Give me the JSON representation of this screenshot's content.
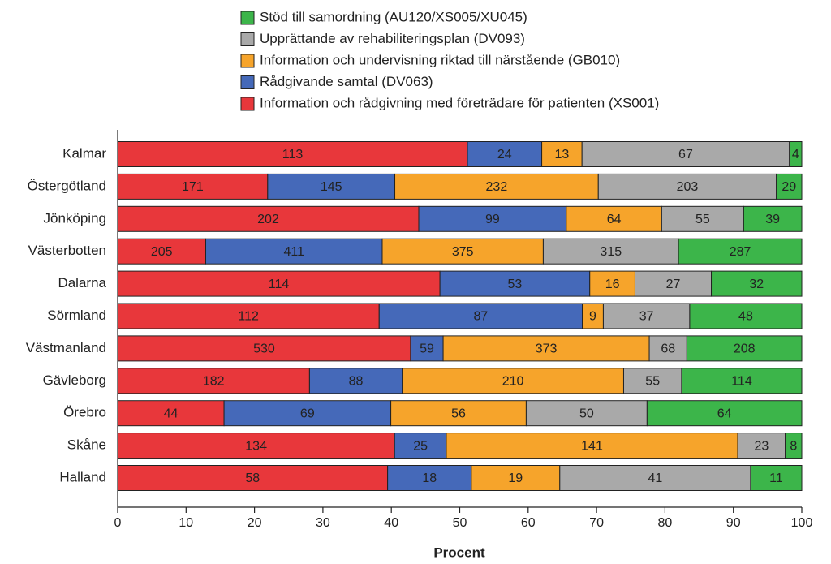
{
  "chart_data": {
    "type": "bar",
    "orientation": "horizontal",
    "stacked": "percent",
    "xlabel": "Procent",
    "categories": [
      "Kalmar",
      "Östergötland",
      "Jönköping",
      "Västerbotten",
      "Dalarna",
      "Sörmland",
      "Västmanland",
      "Gävleborg",
      "Örebro",
      "Skåne",
      "Halland"
    ],
    "series": [
      {
        "name": "Information och rådgivning med företrädare för patienten (XS001)",
        "color": "#e8373b",
        "values": [
          113,
          171,
          202,
          205,
          114,
          112,
          530,
          182,
          44,
          134,
          58
        ]
      },
      {
        "name": "Rådgivande samtal (DV063)",
        "color": "#4569b9",
        "values": [
          24,
          145,
          99,
          411,
          53,
          87,
          59,
          88,
          69,
          25,
          18
        ]
      },
      {
        "name": "Information och undervisning riktad till närstående (GB010)",
        "color": "#f6a42b",
        "values": [
          13,
          232,
          64,
          375,
          16,
          9,
          373,
          210,
          56,
          141,
          19
        ]
      },
      {
        "name": "Upprättande av rehabiliteringsplan (DV093)",
        "color": "#a9a9a9",
        "values": [
          67,
          203,
          55,
          315,
          27,
          37,
          68,
          55,
          50,
          23,
          41
        ]
      },
      {
        "name": "Stöd till samordning (AU120/XS005/XU045)",
        "color": "#3cb54a",
        "values": [
          4,
          29,
          39,
          287,
          32,
          48,
          208,
          114,
          64,
          8,
          11
        ]
      }
    ],
    "xlim": [
      0,
      100
    ],
    "xticks": [
      0,
      10,
      20,
      30,
      40,
      50,
      60,
      70,
      80,
      90,
      100
    ],
    "legend": "top"
  }
}
